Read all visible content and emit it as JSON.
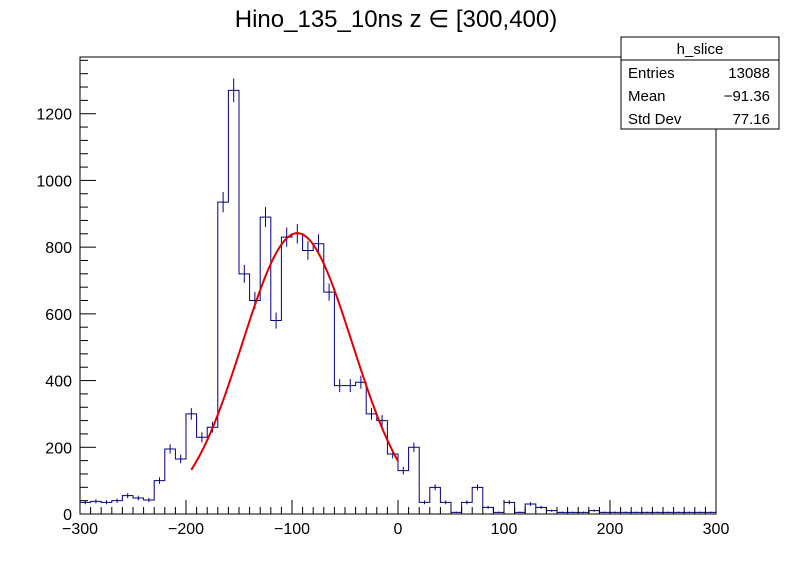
{
  "chart_data": {
    "type": "bar",
    "title": "Hino_135_10ns z  ∈ [300,400)",
    "xlabel": "",
    "ylabel": "",
    "xlim": [
      -300,
      300
    ],
    "ylim": [
      0,
      1370
    ],
    "grid": false,
    "bin_width": 10,
    "x_ticks": [
      -300,
      -200,
      -100,
      0,
      100,
      200,
      300
    ],
    "x_tick_labels": [
      "−300",
      "−200",
      "−100",
      "0",
      "100",
      "200",
      "300"
    ],
    "y_ticks": [
      0,
      200,
      400,
      600,
      800,
      1000,
      1200
    ],
    "y_tick_labels": [
      "0",
      "200",
      "400",
      "600",
      "800",
      "1000",
      "1200"
    ],
    "bin_edges_start": -300,
    "values": [
      35,
      38,
      35,
      40,
      55,
      48,
      42,
      100,
      195,
      165,
      300,
      230,
      260,
      935,
      1270,
      720,
      640,
      890,
      580,
      830,
      840,
      790,
      810,
      665,
      385,
      385,
      395,
      300,
      280,
      180,
      130,
      200,
      35,
      80,
      35,
      5,
      35,
      80,
      20,
      5,
      35,
      5,
      30,
      20,
      10,
      5,
      5,
      5,
      10,
      5,
      5,
      5,
      5,
      5,
      5,
      5,
      5,
      5,
      5,
      5
    ],
    "series": [
      {
        "name": "h_slice",
        "type": "histogram",
        "color": "#000080"
      },
      {
        "type": "fit",
        "color": "#e00000",
        "shape": "gaussian",
        "amplitude": 842,
        "mean": -95,
        "sigma": 52,
        "x_range": [
          -195,
          0
        ]
      }
    ],
    "legend": {
      "placement": "top-right",
      "name": "h_slice",
      "rows": [
        {
          "label": "Entries",
          "value": "13088"
        },
        {
          "label": "Mean",
          "value": "−91.36"
        },
        {
          "label": "Std Dev",
          "value": "77.16"
        }
      ]
    },
    "colors": {
      "histogram": "#000080",
      "fit": "#e00000",
      "axis": "#000000"
    }
  }
}
